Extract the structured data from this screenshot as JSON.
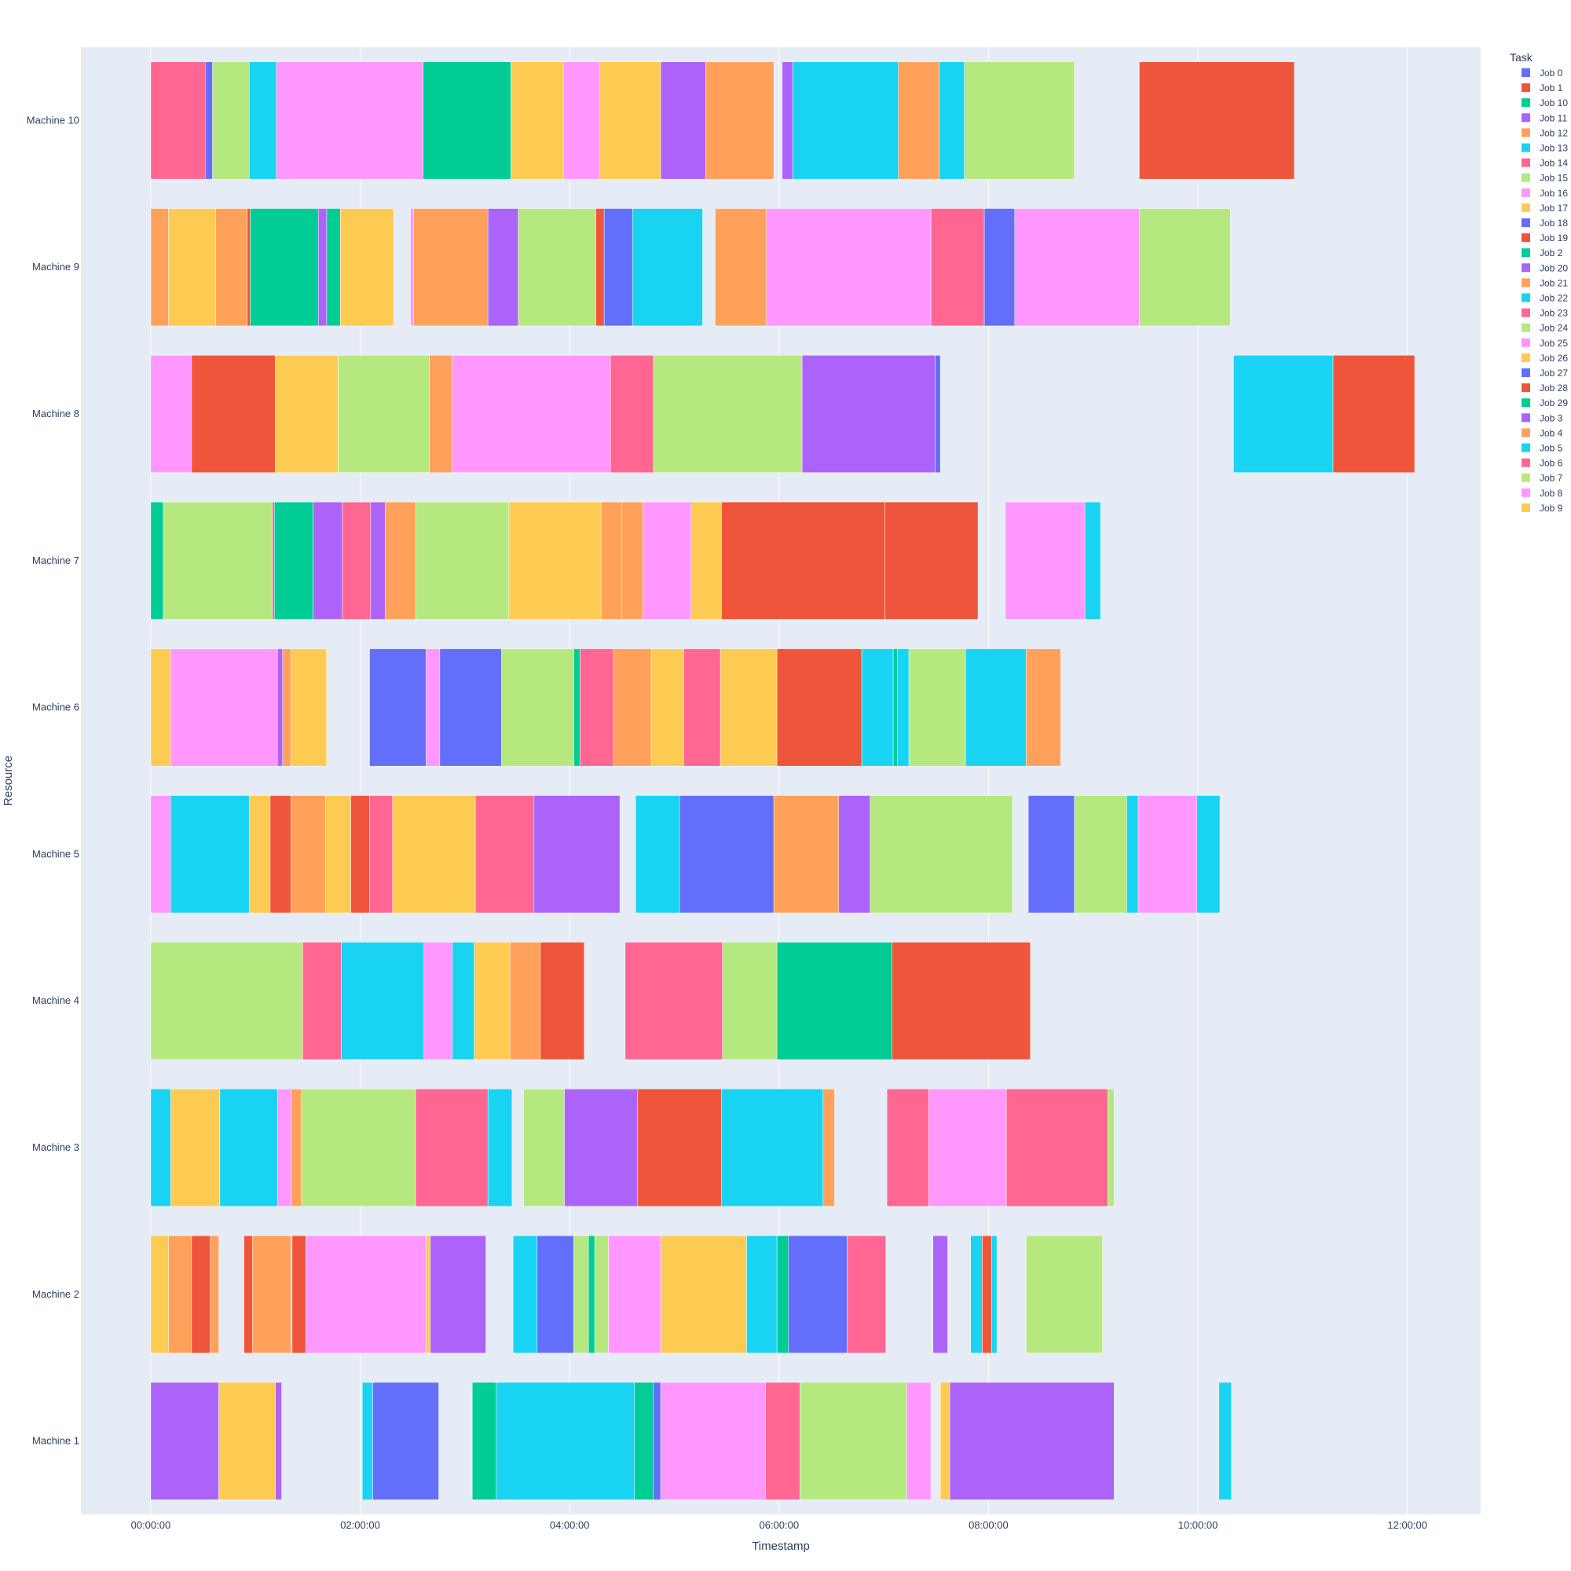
{
  "chart_data": {
    "type": "gantt",
    "title": "",
    "xlabel": "Timestamp",
    "ylabel": "Resource",
    "legend_title": "Task",
    "legend_placement": "right",
    "xlim_hours": [
      -0.667,
      12.7
    ],
    "x_ticks": [
      {
        "value": 0,
        "label": "00:00:00"
      },
      {
        "value": 2,
        "label": "02:00:00"
      },
      {
        "value": 4,
        "label": "04:00:00"
      },
      {
        "value": 6,
        "label": "06:00:00"
      },
      {
        "value": 8,
        "label": "08:00:00"
      },
      {
        "value": 10,
        "label": "10:00:00"
      },
      {
        "value": 12,
        "label": "12:00:00"
      }
    ],
    "resources": [
      "Machine 1",
      "Machine 2",
      "Machine 3",
      "Machine 4",
      "Machine 5",
      "Machine 6",
      "Machine 7",
      "Machine 8",
      "Machine 9",
      "Machine 10"
    ],
    "legend": [
      {
        "job": "Job 0",
        "color": "#636efa"
      },
      {
        "job": "Job 1",
        "color": "#ef553b"
      },
      {
        "job": "Job 10",
        "color": "#00cc96"
      },
      {
        "job": "Job 11",
        "color": "#ab63fa"
      },
      {
        "job": "Job 12",
        "color": "#ffa15a"
      },
      {
        "job": "Job 13",
        "color": "#19d3f3"
      },
      {
        "job": "Job 14",
        "color": "#ff6692"
      },
      {
        "job": "Job 15",
        "color": "#b6e880"
      },
      {
        "job": "Job 16",
        "color": "#ff97ff"
      },
      {
        "job": "Job 17",
        "color": "#fecb52"
      },
      {
        "job": "Job 18",
        "color": "#636efa"
      },
      {
        "job": "Job 19",
        "color": "#ef553b"
      },
      {
        "job": "Job 2",
        "color": "#00cc96"
      },
      {
        "job": "Job 20",
        "color": "#ab63fa"
      },
      {
        "job": "Job 21",
        "color": "#ffa15a"
      },
      {
        "job": "Job 22",
        "color": "#19d3f3"
      },
      {
        "job": "Job 23",
        "color": "#ff6692"
      },
      {
        "job": "Job 24",
        "color": "#b6e880"
      },
      {
        "job": "Job 25",
        "color": "#ff97ff"
      },
      {
        "job": "Job 26",
        "color": "#fecb52"
      },
      {
        "job": "Job 27",
        "color": "#636efa"
      },
      {
        "job": "Job 28",
        "color": "#ef553b"
      },
      {
        "job": "Job 29",
        "color": "#00cc96"
      },
      {
        "job": "Job 3",
        "color": "#ab63fa"
      },
      {
        "job": "Job 4",
        "color": "#ffa15a"
      },
      {
        "job": "Job 5",
        "color": "#19d3f3"
      },
      {
        "job": "Job 6",
        "color": "#ff6692"
      },
      {
        "job": "Job 7",
        "color": "#b6e880"
      },
      {
        "job": "Job 8",
        "color": "#ff97ff"
      },
      {
        "job": "Job 9",
        "color": "#fecb52"
      }
    ],
    "tasks": {
      "Machine 10": [
        [
          "Job 14",
          0,
          0.52
        ],
        [
          "Job 18",
          0.52,
          0.59
        ],
        [
          "Job 15",
          0.59,
          0.94
        ],
        [
          "Job 13",
          0.94,
          1.2
        ],
        [
          "Job 16",
          1.2,
          2.6
        ],
        [
          "Job 29",
          2.6,
          3.44
        ],
        [
          "Job 26",
          3.44,
          3.94
        ],
        [
          "Job 25",
          3.94,
          4.29
        ],
        [
          "Job 17",
          4.29,
          4.87
        ],
        [
          "Job 20",
          4.87,
          5.3
        ],
        [
          "Job 21",
          5.3,
          5.95
        ],
        [
          "Job 3",
          6.03,
          6.13
        ],
        [
          "Job 13",
          6.13,
          7.14
        ],
        [
          "Job 12",
          7.14,
          7.53
        ],
        [
          "Job 13",
          7.53,
          7.77
        ],
        [
          "Job 24",
          7.77,
          8.82
        ],
        [
          "Job 1",
          9.44,
          10.92
        ]
      ],
      "Machine 9": [
        [
          "Job 4",
          0,
          0.17
        ],
        [
          "Job 17",
          0.17,
          0.62
        ],
        [
          "Job 4",
          0.62,
          0.92
        ],
        [
          "Job 19",
          0.92,
          0.95
        ],
        [
          "Job 29",
          0.95,
          1.6
        ],
        [
          "Job 11",
          1.6,
          1.68
        ],
        [
          "Job 2",
          1.68,
          1.81
        ],
        [
          "Job 26",
          1.81,
          2.32
        ],
        [
          "Job 8",
          2.48,
          2.51
        ],
        [
          "Job 4",
          2.51,
          3.22
        ],
        [
          "Job 3",
          3.22,
          3.51
        ],
        [
          "Job 24",
          3.51,
          4.25
        ],
        [
          "Job 1",
          4.25,
          4.33
        ],
        [
          "Job 18",
          4.33,
          4.6
        ],
        [
          "Job 22",
          4.6,
          5.27
        ],
        [
          "Job 21",
          5.39,
          5.88
        ],
        [
          "Job 25",
          5.88,
          7.45
        ],
        [
          "Job 23",
          7.45,
          7.96
        ],
        [
          "Job 27",
          7.96,
          8.25
        ],
        [
          "Job 25",
          8.25,
          9.44
        ],
        [
          "Job 15",
          9.44,
          10.31
        ]
      ],
      "Machine 8": [
        [
          "Job 8",
          0,
          0.39
        ],
        [
          "Job 1",
          0.39,
          1.19
        ],
        [
          "Job 26",
          1.19,
          1.79
        ],
        [
          "Job 24",
          1.79,
          2.66
        ],
        [
          "Job 21",
          2.66,
          2.88
        ],
        [
          "Job 25",
          2.88,
          4.39
        ],
        [
          "Job 14",
          4.39,
          4.8
        ],
        [
          "Job 7",
          4.8,
          6.22
        ],
        [
          "Job 3",
          6.22,
          7.49
        ],
        [
          "Job 27",
          7.49,
          7.54
        ],
        [
          "Job 22",
          10.34,
          11.29
        ],
        [
          "Job 28",
          11.29,
          12.07
        ]
      ],
      "Machine 7": [
        [
          "Job 29",
          0,
          0.12
        ],
        [
          "Job 7",
          0.12,
          1.16
        ],
        [
          "Job 6",
          1.16,
          1.18
        ],
        [
          "Job 2",
          1.18,
          1.55
        ],
        [
          "Job 11",
          1.55,
          1.83
        ],
        [
          "Job 23",
          1.83,
          2.1
        ],
        [
          "Job 20",
          2.1,
          2.24
        ],
        [
          "Job 21",
          2.24,
          2.53
        ],
        [
          "Job 24",
          2.53,
          3.42
        ],
        [
          "Job 26",
          3.42,
          4.3
        ],
        [
          "Job 4",
          4.3,
          4.5
        ],
        [
          "Job 12",
          4.5,
          4.7
        ],
        [
          "Job 16",
          4.7,
          5.16
        ],
        [
          "Job 17",
          5.16,
          5.45
        ],
        [
          "Job 1",
          5.45,
          7.01
        ],
        [
          "Job 28",
          7.01,
          7.9
        ],
        [
          "Job 8",
          8.16,
          8.92
        ],
        [
          "Job 5",
          8.92,
          9.07
        ]
      ],
      "Machine 6": [
        [
          "Job 9",
          0,
          0.19
        ],
        [
          "Job 16",
          0.19,
          1.21
        ],
        [
          "Job 20",
          1.21,
          1.26
        ],
        [
          "Job 21",
          1.26,
          1.34
        ],
        [
          "Job 9",
          1.34,
          1.68
        ],
        [
          "Job 27",
          2.09,
          2.63
        ],
        [
          "Job 8",
          2.63,
          2.76
        ],
        [
          "Job 18",
          2.76,
          3.35
        ],
        [
          "Job 15",
          3.35,
          4.04
        ],
        [
          "Job 10",
          4.04,
          4.1
        ],
        [
          "Job 23",
          4.1,
          4.42
        ],
        [
          "Job 12",
          4.42,
          4.78
        ],
        [
          "Job 17",
          4.78,
          5.09
        ],
        [
          "Job 14",
          5.09,
          5.44
        ],
        [
          "Job 9",
          5.44,
          5.98
        ],
        [
          "Job 1",
          5.98,
          6.79
        ],
        [
          "Job 22",
          6.79,
          7.09
        ],
        [
          "Job 2",
          7.09,
          7.13
        ],
        [
          "Job 13",
          7.13,
          7.24
        ],
        [
          "Job 15",
          7.24,
          7.78
        ],
        [
          "Job 5",
          7.78,
          8.36
        ],
        [
          "Job 4",
          8.36,
          8.69
        ]
      ],
      "Machine 5": [
        [
          "Job 8",
          0,
          0.19
        ],
        [
          "Job 13",
          0.19,
          0.94
        ],
        [
          "Job 9",
          0.94,
          1.14
        ],
        [
          "Job 1",
          1.14,
          1.34
        ],
        [
          "Job 12",
          1.34,
          1.67
        ],
        [
          "Job 26",
          1.67,
          1.91
        ],
        [
          "Job 19",
          1.91,
          2.09
        ],
        [
          "Job 14",
          2.09,
          2.31
        ],
        [
          "Job 17",
          2.31,
          3.1
        ],
        [
          "Job 6",
          3.1,
          3.66
        ],
        [
          "Job 3",
          3.66,
          4.48
        ],
        [
          "Job 22",
          4.63,
          5.05
        ],
        [
          "Job 0",
          5.05,
          5.95
        ],
        [
          "Job 21",
          5.95,
          6.57
        ],
        [
          "Job 20",
          6.57,
          6.87
        ],
        [
          "Job 7",
          6.87,
          8.23
        ],
        [
          "Job 27",
          8.38,
          8.82
        ],
        [
          "Job 15",
          8.82,
          9.32
        ],
        [
          "Job 13",
          9.32,
          9.43
        ],
        [
          "Job 8",
          9.43,
          9.99
        ],
        [
          "Job 5",
          9.99,
          10.21
        ]
      ],
      "Machine 4": [
        [
          "Job 7",
          0,
          1.45
        ],
        [
          "Job 6",
          1.45,
          1.82
        ],
        [
          "Job 5",
          1.82,
          2.61
        ],
        [
          "Job 16",
          2.61,
          2.88
        ],
        [
          "Job 22",
          2.88,
          3.09
        ],
        [
          "Job 9",
          3.09,
          3.43
        ],
        [
          "Job 4",
          3.43,
          3.72
        ],
        [
          "Job 1",
          3.72,
          4.14
        ],
        [
          "Job 23",
          4.53,
          5.46
        ],
        [
          "Job 24",
          5.46,
          5.98
        ],
        [
          "Job 29",
          5.98,
          7.08
        ],
        [
          "Job 1",
          7.08,
          8.4
        ]
      ],
      "Machine 3": [
        [
          "Job 5",
          0,
          0.19
        ],
        [
          "Job 26",
          0.19,
          0.66
        ],
        [
          "Job 5",
          0.66,
          1.21
        ],
        [
          "Job 16",
          1.21,
          1.34
        ],
        [
          "Job 21",
          1.34,
          1.44
        ],
        [
          "Job 7",
          1.44,
          2.53
        ],
        [
          "Job 6",
          2.53,
          3.22
        ],
        [
          "Job 13",
          3.22,
          3.45
        ],
        [
          "Job 24",
          3.56,
          3.95
        ],
        [
          "Job 11",
          3.95,
          4.65
        ],
        [
          "Job 19",
          4.65,
          5.45
        ],
        [
          "Job 5",
          5.45,
          6.42
        ],
        [
          "Job 12",
          6.42,
          6.53
        ],
        [
          "Job 14",
          7.03,
          7.43
        ],
        [
          "Job 25",
          7.43,
          8.17
        ],
        [
          "Job 23",
          8.17,
          9.14
        ],
        [
          "Job 15",
          9.14,
          9.2
        ]
      ],
      "Machine 2": [
        [
          "Job 26",
          0,
          0.17
        ],
        [
          "Job 21",
          0.17,
          0.39
        ],
        [
          "Job 19",
          0.39,
          0.57
        ],
        [
          "Job 4",
          0.57,
          0.65
        ],
        [
          "Job 1",
          0.89,
          0.97
        ],
        [
          "Job 12",
          0.97,
          1.34
        ],
        [
          "Job 1",
          1.35,
          1.48
        ],
        [
          "Job 25",
          1.48,
          2.63
        ],
        [
          "Job 9",
          2.63,
          2.67
        ],
        [
          "Job 3",
          2.67,
          3.2
        ],
        [
          "Job 13",
          3.46,
          3.69
        ],
        [
          "Job 18",
          3.69,
          4.04
        ],
        [
          "Job 7",
          4.04,
          4.18
        ],
        [
          "Job 29",
          4.18,
          4.24
        ],
        [
          "Job 15",
          4.24,
          4.37
        ],
        [
          "Job 16",
          4.37,
          4.87
        ],
        [
          "Job 17",
          4.87,
          5.69
        ],
        [
          "Job 5",
          5.69,
          5.98
        ],
        [
          "Job 10",
          5.98,
          6.09
        ],
        [
          "Job 18",
          6.09,
          6.65
        ],
        [
          "Job 23",
          6.65,
          7.02
        ],
        [
          "Job 11",
          7.47,
          7.61
        ],
        [
          "Job 22",
          7.83,
          7.94
        ],
        [
          "Job 1",
          7.94,
          8.03
        ],
        [
          "Job 13",
          8.03,
          8.08
        ],
        [
          "Job 24",
          8.36,
          9.09
        ]
      ],
      "Machine 1": [
        [
          "Job 3",
          0,
          0.65
        ],
        [
          "Job 17",
          0.65,
          1.19
        ],
        [
          "Job 11",
          1.19,
          1.25
        ],
        [
          "Job 13",
          2.02,
          2.12
        ],
        [
          "Job 27",
          2.12,
          2.75
        ],
        [
          "Job 10",
          3.07,
          3.3
        ],
        [
          "Job 22",
          3.3,
          4.62
        ],
        [
          "Job 2",
          4.62,
          4.8
        ],
        [
          "Job 0",
          4.8,
          4.87
        ],
        [
          "Job 8",
          4.87,
          5.87
        ],
        [
          "Job 6",
          5.87,
          6.2
        ],
        [
          "Job 15",
          6.2,
          7.22
        ],
        [
          "Job 16",
          7.22,
          7.45
        ],
        [
          "Job 9",
          7.54,
          7.63
        ],
        [
          "Job 3",
          7.63,
          9.2
        ],
        [
          "Job 13",
          10.2,
          10.32
        ]
      ]
    }
  }
}
